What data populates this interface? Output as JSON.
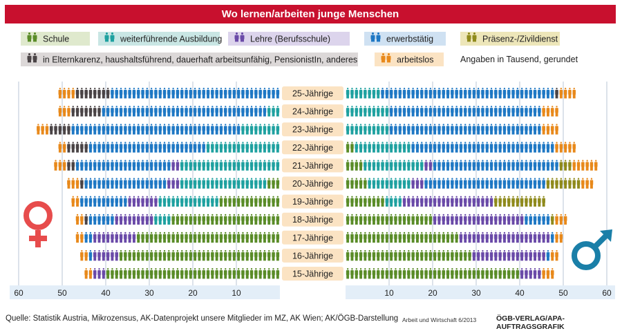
{
  "title": "Wo lernen/arbeiten junge Menschen",
  "note": "Angaben in Tausend, gerundet",
  "source": "Quelle: Statistik Austria, Mikrozensus, AK-Datenprojekt unsere Mitglieder im MZ, AK Wien; AK/ÖGB-Darstellung",
  "credit_small": "Arbeit und Wirtschaft 6/2013",
  "credit": "ÖGB-VERLAG/APA-AUFTRAGSGRAFIK",
  "legend": [
    {
      "key": "schule",
      "label": "Schule",
      "color": "#5a8c28",
      "bg": "#dfe9cd"
    },
    {
      "key": "weiter",
      "label": "weiterführende Ausbildung",
      "color": "#1fa1a0",
      "bg": "#c9e6e4"
    },
    {
      "key": "lehre",
      "label": "Lehre (Berufsschule)",
      "color": "#6a4aa8",
      "bg": "#dcd4ec"
    },
    {
      "key": "erwerb",
      "label": "erwerbstätig",
      "color": "#1f78c4",
      "bg": "#cfe1f2"
    },
    {
      "key": "praesenz",
      "label": "Präsenz-/Zivildienst",
      "color": "#8f8a1c",
      "bg": "#ede6b9"
    },
    {
      "key": "eltern",
      "label": "in Elternkarenz, haushaltsführend, dauerhaft arbeitsunfähig, PensionistIn, anderes",
      "color": "#4a4446",
      "bg": "#dcd8d8"
    },
    {
      "key": "arbeitslos",
      "label": "arbeitslos",
      "color": "#e8891b",
      "bg": "#fbe3c3"
    }
  ],
  "colors": {
    "schule": "#5a8c28",
    "weiter": "#1fa1a0",
    "lehre": "#6a4aa8",
    "erwerb": "#1f78c4",
    "praesenz": "#8f8a1c",
    "eltern": "#4a4446",
    "arbeitslos": "#e8891b",
    "female_symbol": "#e74c4c",
    "male_symbol": "#1a7fa8",
    "label_bg": "#fbe3c3",
    "axis_bg": "#e3eef8"
  },
  "icons": {
    "female": "female-symbol-icon",
    "male": "male-symbol-icon",
    "person": "person-icon"
  },
  "chart_data": {
    "type": "bar",
    "orientation": "horizontal",
    "stacked": true,
    "categories": [
      "25-Jährige",
      "24-Jährige",
      "23-Jährige",
      "22-Jährige",
      "21-Jährige",
      "20-Jährige",
      "19-Jährige",
      "18-Jährige",
      "17-Jährige",
      "16-Jährige",
      "15-Jährige"
    ],
    "x_ticks_left": [
      60,
      50,
      40,
      30,
      20,
      10
    ],
    "x_ticks_right": [
      10,
      20,
      30,
      40,
      50,
      60
    ],
    "xlim": [
      0,
      60
    ],
    "series_order": [
      "schule",
      "weiter",
      "lehre",
      "erwerb",
      "praesenz",
      "eltern",
      "arbeitslos"
    ],
    "female": [
      {
        "age": "25-Jährige",
        "schule": 0,
        "weiter": 0,
        "lehre": 0,
        "erwerb": 39,
        "praesenz": 0,
        "eltern": 8,
        "arbeitslos": 4
      },
      {
        "age": "24-Jährige",
        "schule": 0,
        "weiter": 3,
        "lehre": 0,
        "erwerb": 38,
        "praesenz": 0,
        "eltern": 7,
        "arbeitslos": 3
      },
      {
        "age": "23-Jährige",
        "schule": 0,
        "weiter": 9,
        "lehre": 0,
        "erwerb": 39,
        "praesenz": 0,
        "eltern": 5,
        "arbeitslos": 3
      },
      {
        "age": "22-Jährige",
        "schule": 0,
        "weiter": 17,
        "lehre": 0,
        "erwerb": 27,
        "praesenz": 0,
        "eltern": 5,
        "arbeitslos": 2
      },
      {
        "age": "21-Jährige",
        "schule": 0,
        "weiter": 23,
        "lehre": 2,
        "erwerb": 22,
        "praesenz": 0,
        "eltern": 2,
        "arbeitslos": 3
      },
      {
        "age": "20-Jährige",
        "schule": 3,
        "weiter": 20,
        "lehre": 3,
        "erwerb": 19,
        "praesenz": 0,
        "eltern": 1,
        "arbeitslos": 3
      },
      {
        "age": "19-Jährige",
        "schule": 14,
        "weiter": 14,
        "lehre": 7,
        "erwerb": 11,
        "praesenz": 0,
        "eltern": 0,
        "arbeitslos": 2
      },
      {
        "age": "18-Jährige",
        "schule": 25,
        "weiter": 4,
        "lehre": 9,
        "erwerb": 6,
        "praesenz": 0,
        "eltern": 1,
        "arbeitslos": 2
      },
      {
        "age": "17-Jährige",
        "schule": 33,
        "weiter": 0,
        "lehre": 10,
        "erwerb": 2,
        "praesenz": 0,
        "eltern": 0,
        "arbeitslos": 2
      },
      {
        "age": "16-Jährige",
        "schule": 37,
        "weiter": 0,
        "lehre": 6,
        "erwerb": 1,
        "praesenz": 0,
        "eltern": 0,
        "arbeitslos": 2
      },
      {
        "age": "15-Jährige",
        "schule": 40,
        "weiter": 0,
        "lehre": 3,
        "erwerb": 0,
        "praesenz": 0,
        "eltern": 0,
        "arbeitslos": 2
      }
    ],
    "male": [
      {
        "age": "25-Jährige",
        "schule": 0,
        "weiter": 8,
        "lehre": 0,
        "erwerb": 40,
        "praesenz": 0,
        "eltern": 1,
        "arbeitslos": 4
      },
      {
        "age": "24-Jährige",
        "schule": 0,
        "weiter": 10,
        "lehre": 0,
        "erwerb": 35,
        "praesenz": 0,
        "eltern": 0,
        "arbeitslos": 4
      },
      {
        "age": "23-Jährige",
        "schule": 0,
        "weiter": 10,
        "lehre": 0,
        "erwerb": 35,
        "praesenz": 0,
        "eltern": 0,
        "arbeitslos": 4
      },
      {
        "age": "22-Jährige",
        "schule": 2,
        "weiter": 13,
        "lehre": 0,
        "erwerb": 33,
        "praesenz": 0,
        "eltern": 0,
        "arbeitslos": 5
      },
      {
        "age": "21-Jährige",
        "schule": 4,
        "weiter": 14,
        "lehre": 2,
        "erwerb": 29,
        "praesenz": 3,
        "eltern": 0,
        "arbeitslos": 6
      },
      {
        "age": "20-Jährige",
        "schule": 5,
        "weiter": 10,
        "lehre": 3,
        "erwerb": 28,
        "praesenz": 8,
        "eltern": 0,
        "arbeitslos": 3
      },
      {
        "age": "19-Jährige",
        "schule": 9,
        "weiter": 4,
        "lehre": 21,
        "erwerb": 0,
        "praesenz": 12,
        "eltern": 0,
        "arbeitslos": 0
      },
      {
        "age": "18-Jährige",
        "schule": 20,
        "weiter": 0,
        "lehre": 21,
        "erwerb": 6,
        "praesenz": 1,
        "eltern": 0,
        "arbeitslos": 3
      },
      {
        "age": "17-Jährige",
        "schule": 26,
        "weiter": 0,
        "lehre": 21,
        "erwerb": 1,
        "praesenz": 0,
        "eltern": 0,
        "arbeitslos": 2
      },
      {
        "age": "16-Jährige",
        "schule": 29,
        "weiter": 0,
        "lehre": 17,
        "erwerb": 1,
        "praesenz": 0,
        "eltern": 0,
        "arbeitslos": 2
      },
      {
        "age": "15-Jährige",
        "schule": 40,
        "weiter": 0,
        "lehre": 5,
        "erwerb": 0,
        "praesenz": 0,
        "eltern": 0,
        "arbeitslos": 3
      }
    ]
  }
}
